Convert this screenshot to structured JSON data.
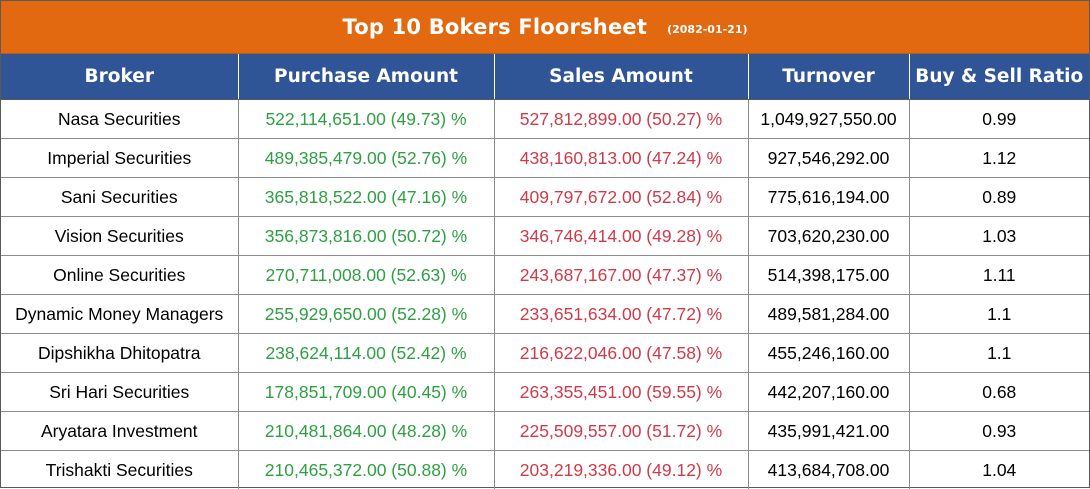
{
  "title": {
    "text": "Top 10 Bokers Floorsheet",
    "date": "(2082-01-21)"
  },
  "colors": {
    "title_bar": "#e2690f",
    "header_bg": "#2f5597",
    "purchase_text": "#2ea043",
    "sales_text": "#d03a4a"
  },
  "table": {
    "headers": [
      "Broker",
      "Purchase Amount",
      "Sales Amount",
      "Turnover",
      "Buy & Sell Ratio"
    ],
    "rows": [
      {
        "broker": "Nasa Securities",
        "purchase": "522,114,651.00 (49.73) %",
        "sales": "527,812,899.00 (50.27) %",
        "turnover": "1,049,927,550.00",
        "ratio": "0.99"
      },
      {
        "broker": "Imperial Securities",
        "purchase": "489,385,479.00 (52.76) %",
        "sales": "438,160,813.00 (47.24) %",
        "turnover": "927,546,292.00",
        "ratio": "1.12"
      },
      {
        "broker": "Sani Securities",
        "purchase": "365,818,522.00 (47.16) %",
        "sales": "409,797,672.00 (52.84) %",
        "turnover": "775,616,194.00",
        "ratio": "0.89"
      },
      {
        "broker": "Vision Securities",
        "purchase": "356,873,816.00 (50.72) %",
        "sales": "346,746,414.00 (49.28) %",
        "turnover": "703,620,230.00",
        "ratio": "1.03"
      },
      {
        "broker": "Online Securities",
        "purchase": "270,711,008.00 (52.63) %",
        "sales": "243,687,167.00 (47.37) %",
        "turnover": "514,398,175.00",
        "ratio": "1.11"
      },
      {
        "broker": "Dynamic Money Managers",
        "purchase": "255,929,650.00 (52.28) %",
        "sales": "233,651,634.00 (47.72) %",
        "turnover": "489,581,284.00",
        "ratio": "1.1"
      },
      {
        "broker": "Dipshikha Dhitopatra",
        "purchase": "238,624,114.00 (52.42) %",
        "sales": "216,622,046.00 (47.58) %",
        "turnover": "455,246,160.00",
        "ratio": "1.1"
      },
      {
        "broker": "Sri Hari Securities",
        "purchase": "178,851,709.00 (40.45) %",
        "sales": "263,355,451.00 (59.55) %",
        "turnover": "442,207,160.00",
        "ratio": "0.68"
      },
      {
        "broker": "Aryatara Investment",
        "purchase": "210,481,864.00 (48.28) %",
        "sales": "225,509,557.00 (51.72) %",
        "turnover": "435,991,421.00",
        "ratio": "0.93"
      },
      {
        "broker": "Trishakti Securities",
        "purchase": "210,465,372.00 (50.88) %",
        "sales": "203,219,336.00 (49.12) %",
        "turnover": "413,684,708.00",
        "ratio": "1.04"
      }
    ]
  }
}
